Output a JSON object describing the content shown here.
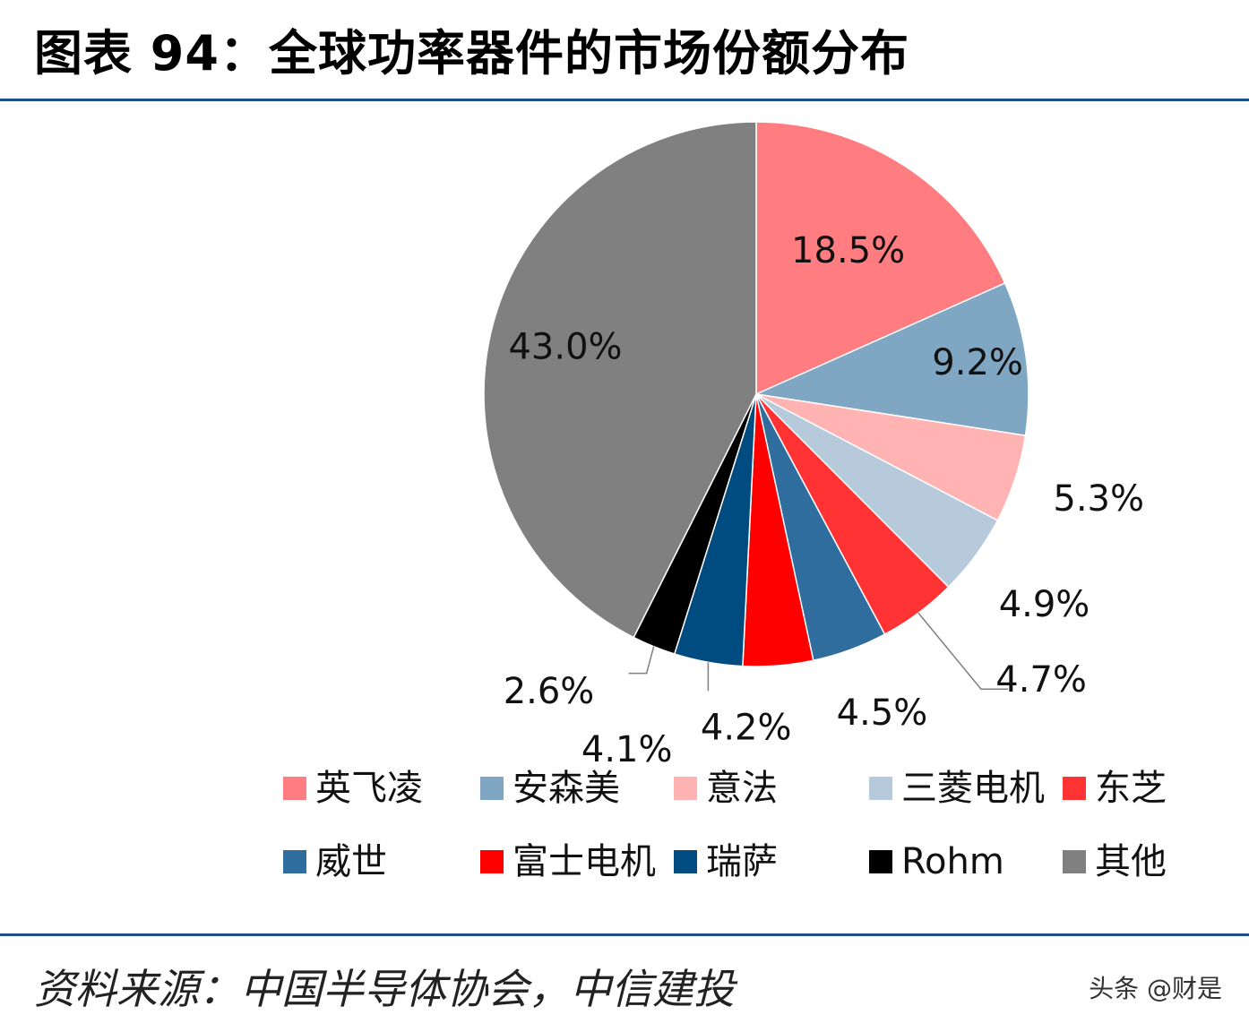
{
  "title": "图表 94：全球功率器件的市场份额分布",
  "source": "资料来源：中国半导体协会，中信建投",
  "watermark": "头条 @财是",
  "chart_data": {
    "type": "pie",
    "start_angle_deg": 90,
    "direction": "clockwise",
    "categories": [
      "英飞凌",
      "安森美",
      "意法",
      "三菱电机",
      "东芝",
      "威世",
      "富士电机",
      "瑞萨",
      "Rohm",
      "其他"
    ],
    "values": [
      18.5,
      9.2,
      5.3,
      4.9,
      4.7,
      4.5,
      4.2,
      4.1,
      2.6,
      43.0
    ],
    "labels": [
      "18.5%",
      "9.2%",
      "5.3%",
      "4.9%",
      "4.7%",
      "4.5%",
      "4.2%",
      "4.1%",
      "2.6%",
      "43.0%"
    ],
    "colors": [
      "#ff7c80",
      "#7fa7c4",
      "#ffb3b3",
      "#b7cadb",
      "#ff3333",
      "#2e6d9e",
      "#ff0000",
      "#004b7f",
      "#000000",
      "#808080"
    ],
    "legend_placement": "bottom"
  }
}
